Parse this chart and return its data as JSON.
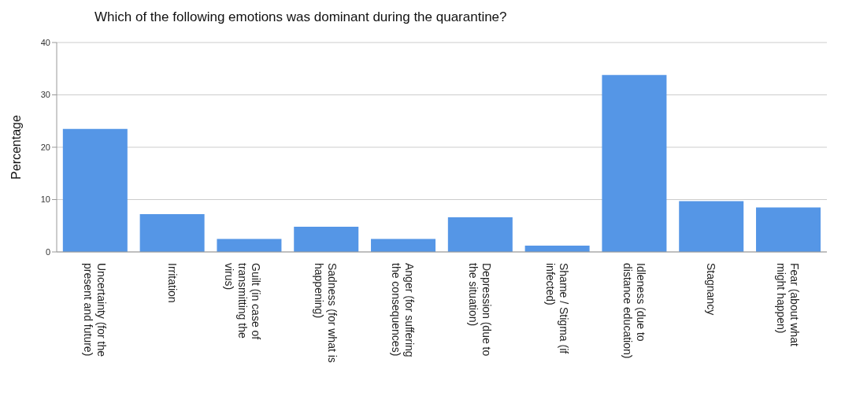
{
  "chart_data": {
    "type": "bar",
    "title": "Which of the following emotions was dominant during the quarantine?",
    "ylabel": "Percentage",
    "categories": [
      "Uncertainty (for the present and future)",
      "Irritation",
      "Guilt (in case of transmitting the virus)",
      "Sadness (for what is happening)",
      "Anger (for suffering the consequences)",
      "Depression (due to the situation)",
      "Shame / Stigma (if infected)",
      "Idleness (due to distance education)",
      "Stagnancy",
      "Fear (about what might happen)"
    ],
    "values": [
      23.5,
      7.2,
      2.5,
      4.8,
      2.5,
      6.6,
      1.2,
      33.8,
      9.7,
      8.5
    ],
    "color": "#5596e6",
    "ylim": [
      0,
      40
    ],
    "yticks": [
      0,
      10,
      20,
      30,
      40
    ],
    "grid": "y"
  }
}
